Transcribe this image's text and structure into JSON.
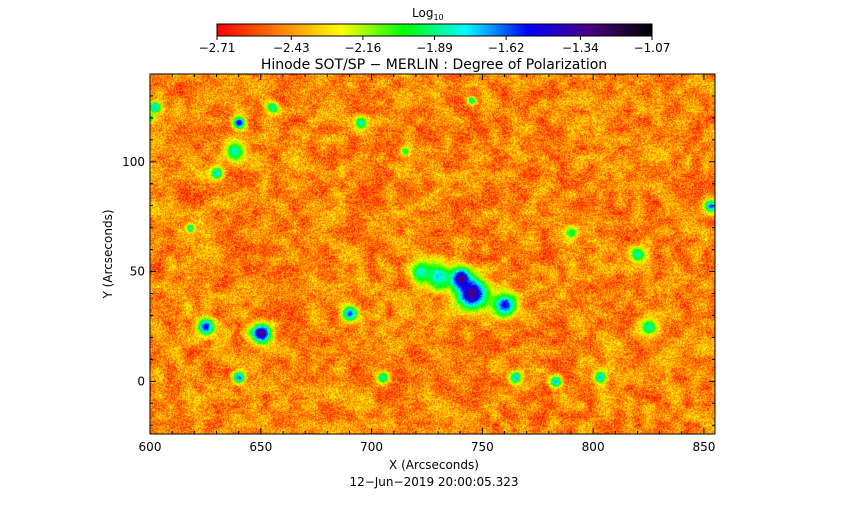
{
  "chart_data": {
    "type": "heatmap",
    "title": "Hinode SOT/SP − MERLIN : Degree of Polarization",
    "xlabel": "X (Arcseconds)",
    "ylabel": "Y (Arcseconds)",
    "timestamp": "12−Jun−2019 20:00:05.323",
    "xlim": [
      600,
      855
    ],
    "ylim": [
      -24,
      140
    ],
    "x_ticks": [
      "600",
      "650",
      "700",
      "750",
      "800",
      "850"
    ],
    "x_tick_values": [
      600,
      650,
      700,
      750,
      800,
      850
    ],
    "y_ticks": [
      "0",
      "50",
      "100"
    ],
    "y_tick_values": [
      0,
      50,
      100
    ],
    "colorbar": {
      "label": "Log",
      "label_subscript": "10",
      "range": [
        -2.71,
        -1.07
      ],
      "tick_labels": [
        "−2.71",
        "−2.43",
        "−2.16",
        "−1.89",
        "−1.62",
        "−1.34",
        "−1.07"
      ],
      "tick_values": [
        -2.71,
        -2.43,
        -2.16,
        -1.89,
        -1.62,
        -1.34,
        -1.07
      ],
      "colors": [
        "#ff0000",
        "#ff7f00",
        "#ffff00",
        "#00ff00",
        "#00ffff",
        "#0000ff",
        "#4b0082",
        "#000000"
      ]
    },
    "features": [
      {
        "x": 745,
        "y": 40,
        "r": 8,
        "value": -1.3
      },
      {
        "x": 740,
        "y": 47,
        "r": 5,
        "value": -1.25
      },
      {
        "x": 760,
        "y": 35,
        "r": 6,
        "value": -1.5
      },
      {
        "x": 730,
        "y": 48,
        "r": 7,
        "value": -1.75
      },
      {
        "x": 722,
        "y": 50,
        "r": 5,
        "value": -1.8
      },
      {
        "x": 650,
        "y": 22,
        "r": 5,
        "value": -1.3
      },
      {
        "x": 625,
        "y": 25,
        "r": 4,
        "value": -1.5
      },
      {
        "x": 690,
        "y": 31,
        "r": 4,
        "value": -1.6
      },
      {
        "x": 638,
        "y": 105,
        "r": 5,
        "value": -1.8
      },
      {
        "x": 640,
        "y": 118,
        "r": 3,
        "value": -1.4
      },
      {
        "x": 630,
        "y": 95,
        "r": 3,
        "value": -1.7
      },
      {
        "x": 820,
        "y": 58,
        "r": 4,
        "value": -1.8
      },
      {
        "x": 825,
        "y": 25,
        "r": 4,
        "value": -1.8
      },
      {
        "x": 853,
        "y": 80,
        "r": 3,
        "value": -1.6
      },
      {
        "x": 783,
        "y": 0,
        "r": 3,
        "value": -1.7
      },
      {
        "x": 803,
        "y": 2,
        "r": 3,
        "value": -1.7
      },
      {
        "x": 705,
        "y": 2,
        "r": 3,
        "value": -1.8
      },
      {
        "x": 640,
        "y": 2,
        "r": 3,
        "value": -1.6
      },
      {
        "x": 765,
        "y": 2,
        "r": 3,
        "value": -1.7
      },
      {
        "x": 695,
        "y": 118,
        "r": 3,
        "value": -1.8
      },
      {
        "x": 655,
        "y": 125,
        "r": 3,
        "value": -1.8
      },
      {
        "x": 602,
        "y": 125,
        "r": 3,
        "value": -1.7
      },
      {
        "x": 618,
        "y": 70,
        "r": 2,
        "value": -1.8
      },
      {
        "x": 715,
        "y": 105,
        "r": 2,
        "value": -1.9
      },
      {
        "x": 745,
        "y": 128,
        "r": 2,
        "value": -1.8
      },
      {
        "x": 790,
        "y": 68,
        "r": 3,
        "value": -1.9
      },
      {
        "x": 600,
        "y": 120,
        "r": 2,
        "value": -1.9
      }
    ]
  }
}
